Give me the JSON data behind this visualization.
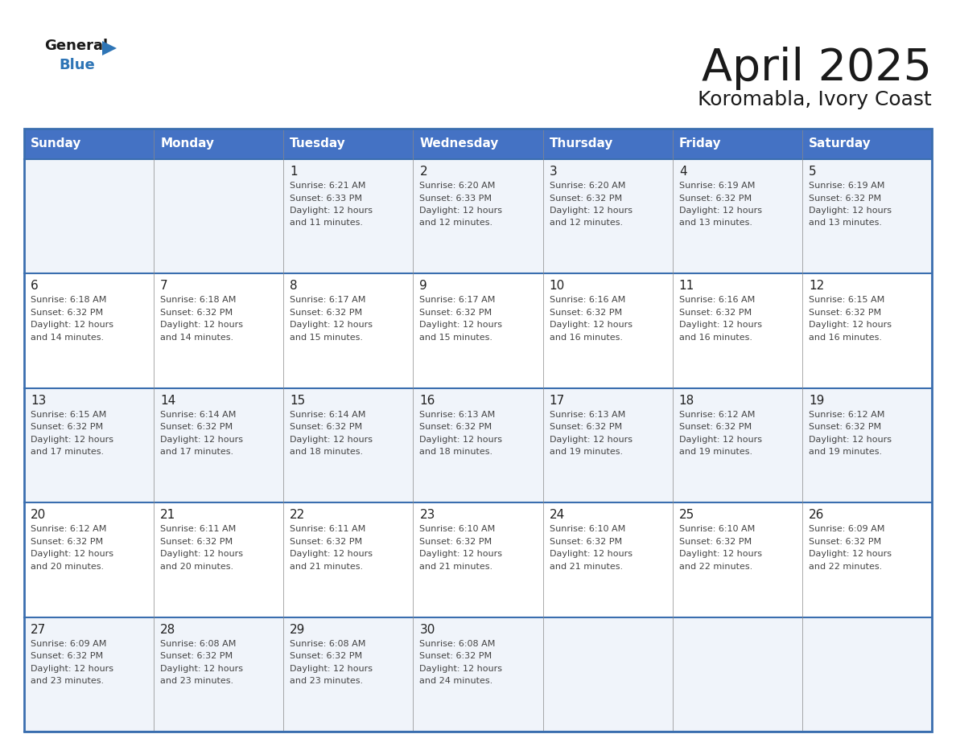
{
  "title": "April 2025",
  "subtitle": "Koromabla, Ivory Coast",
  "header_bg": "#4472C4",
  "header_text": "#FFFFFF",
  "row_bg_light": "#F0F4FA",
  "row_bg_white": "#FFFFFF",
  "cell_line_color": "#3A6EAF",
  "day_names": [
    "Sunday",
    "Monday",
    "Tuesday",
    "Wednesday",
    "Thursday",
    "Friday",
    "Saturday"
  ],
  "title_color": "#1A1A1A",
  "subtitle_color": "#1A1A1A",
  "text_color": "#444444",
  "day_num_color": "#222222",
  "calendar_data": [
    [
      {
        "day": "",
        "sunrise": "",
        "sunset": "",
        "daylight_suffix": ""
      },
      {
        "day": "",
        "sunrise": "",
        "sunset": "",
        "daylight_suffix": ""
      },
      {
        "day": "1",
        "sunrise": "6:21 AM",
        "sunset": "6:33 PM",
        "daylight_suffix": "11 minutes."
      },
      {
        "day": "2",
        "sunrise": "6:20 AM",
        "sunset": "6:33 PM",
        "daylight_suffix": "12 minutes."
      },
      {
        "day": "3",
        "sunrise": "6:20 AM",
        "sunset": "6:32 PM",
        "daylight_suffix": "12 minutes."
      },
      {
        "day": "4",
        "sunrise": "6:19 AM",
        "sunset": "6:32 PM",
        "daylight_suffix": "13 minutes."
      },
      {
        "day": "5",
        "sunrise": "6:19 AM",
        "sunset": "6:32 PM",
        "daylight_suffix": "13 minutes."
      }
    ],
    [
      {
        "day": "6",
        "sunrise": "6:18 AM",
        "sunset": "6:32 PM",
        "daylight_suffix": "14 minutes."
      },
      {
        "day": "7",
        "sunrise": "6:18 AM",
        "sunset": "6:32 PM",
        "daylight_suffix": "14 minutes."
      },
      {
        "day": "8",
        "sunrise": "6:17 AM",
        "sunset": "6:32 PM",
        "daylight_suffix": "15 minutes."
      },
      {
        "day": "9",
        "sunrise": "6:17 AM",
        "sunset": "6:32 PM",
        "daylight_suffix": "15 minutes."
      },
      {
        "day": "10",
        "sunrise": "6:16 AM",
        "sunset": "6:32 PM",
        "daylight_suffix": "16 minutes."
      },
      {
        "day": "11",
        "sunrise": "6:16 AM",
        "sunset": "6:32 PM",
        "daylight_suffix": "16 minutes."
      },
      {
        "day": "12",
        "sunrise": "6:15 AM",
        "sunset": "6:32 PM",
        "daylight_suffix": "16 minutes."
      }
    ],
    [
      {
        "day": "13",
        "sunrise": "6:15 AM",
        "sunset": "6:32 PM",
        "daylight_suffix": "17 minutes."
      },
      {
        "day": "14",
        "sunrise": "6:14 AM",
        "sunset": "6:32 PM",
        "daylight_suffix": "17 minutes."
      },
      {
        "day": "15",
        "sunrise": "6:14 AM",
        "sunset": "6:32 PM",
        "daylight_suffix": "18 minutes."
      },
      {
        "day": "16",
        "sunrise": "6:13 AM",
        "sunset": "6:32 PM",
        "daylight_suffix": "18 minutes."
      },
      {
        "day": "17",
        "sunrise": "6:13 AM",
        "sunset": "6:32 PM",
        "daylight_suffix": "19 minutes."
      },
      {
        "day": "18",
        "sunrise": "6:12 AM",
        "sunset": "6:32 PM",
        "daylight_suffix": "19 minutes."
      },
      {
        "day": "19",
        "sunrise": "6:12 AM",
        "sunset": "6:32 PM",
        "daylight_suffix": "19 minutes."
      }
    ],
    [
      {
        "day": "20",
        "sunrise": "6:12 AM",
        "sunset": "6:32 PM",
        "daylight_suffix": "20 minutes."
      },
      {
        "day": "21",
        "sunrise": "6:11 AM",
        "sunset": "6:32 PM",
        "daylight_suffix": "20 minutes."
      },
      {
        "day": "22",
        "sunrise": "6:11 AM",
        "sunset": "6:32 PM",
        "daylight_suffix": "21 minutes."
      },
      {
        "day": "23",
        "sunrise": "6:10 AM",
        "sunset": "6:32 PM",
        "daylight_suffix": "21 minutes."
      },
      {
        "day": "24",
        "sunrise": "6:10 AM",
        "sunset": "6:32 PM",
        "daylight_suffix": "21 minutes."
      },
      {
        "day": "25",
        "sunrise": "6:10 AM",
        "sunset": "6:32 PM",
        "daylight_suffix": "22 minutes."
      },
      {
        "day": "26",
        "sunrise": "6:09 AM",
        "sunset": "6:32 PM",
        "daylight_suffix": "22 minutes."
      }
    ],
    [
      {
        "day": "27",
        "sunrise": "6:09 AM",
        "sunset": "6:32 PM",
        "daylight_suffix": "23 minutes."
      },
      {
        "day": "28",
        "sunrise": "6:08 AM",
        "sunset": "6:32 PM",
        "daylight_suffix": "23 minutes."
      },
      {
        "day": "29",
        "sunrise": "6:08 AM",
        "sunset": "6:32 PM",
        "daylight_suffix": "23 minutes."
      },
      {
        "day": "30",
        "sunrise": "6:08 AM",
        "sunset": "6:32 PM",
        "daylight_suffix": "24 minutes."
      },
      {
        "day": "",
        "sunrise": "",
        "sunset": "",
        "daylight_suffix": ""
      },
      {
        "day": "",
        "sunrise": "",
        "sunset": "",
        "daylight_suffix": ""
      },
      {
        "day": "",
        "sunrise": "",
        "sunset": "",
        "daylight_suffix": ""
      }
    ]
  ]
}
